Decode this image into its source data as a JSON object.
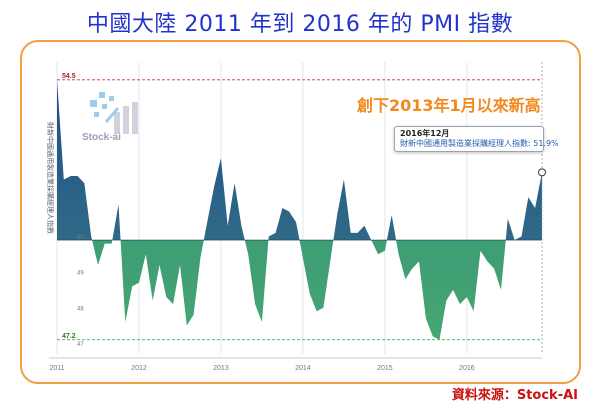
{
  "title": "中國大陸 2011 年到 2016 年的 PMI 指數",
  "annotation": "創下2013年1月以來新高",
  "tooltip": {
    "date": "2016年12月",
    "text": "財新中國通用製造業採購經理人指數: 51.9%"
  },
  "watermark": "Stock-ai",
  "source": "資料來源：Stock-AI",
  "colors": {
    "title": "#2233cc",
    "annotation": "#f08a1c",
    "source": "#cc1111",
    "above_fill": "#2d5d8a",
    "below_fill": "#3a9a78",
    "max_line": "#cc3333",
    "min_line": "#2e9a3a",
    "frame": "#f0a040"
  },
  "chart_data": {
    "type": "area",
    "ylabel": "財新中國通用製造業採購經理人指數",
    "x_ticks": [
      "2011",
      "2012",
      "2013",
      "2014",
      "2015",
      "2016"
    ],
    "ylim": [
      46.8,
      55
    ],
    "y_ticks": [
      47,
      48,
      49,
      50
    ],
    "baseline": 50,
    "max_label": "54.5",
    "min_label": "47.2",
    "grid": true,
    "x": [
      2011.0,
      2011.083,
      2011.167,
      2011.25,
      2011.333,
      2011.417,
      2011.5,
      2011.583,
      2011.667,
      2011.75,
      2011.833,
      2011.917,
      2012.0,
      2012.083,
      2012.167,
      2012.25,
      2012.333,
      2012.417,
      2012.5,
      2012.583,
      2012.667,
      2012.75,
      2012.833,
      2012.917,
      2013.0,
      2013.083,
      2013.167,
      2013.25,
      2013.333,
      2013.417,
      2013.5,
      2013.583,
      2013.667,
      2013.75,
      2013.833,
      2013.917,
      2014.0,
      2014.083,
      2014.167,
      2014.25,
      2014.333,
      2014.417,
      2014.5,
      2014.583,
      2014.667,
      2014.75,
      2014.833,
      2014.917,
      2015.0,
      2015.083,
      2015.167,
      2015.25,
      2015.333,
      2015.417,
      2015.5,
      2015.583,
      2015.667,
      2015.75,
      2015.833,
      2015.917,
      2016.0,
      2016.083,
      2016.167,
      2016.25,
      2016.333,
      2016.417,
      2016.5,
      2016.583,
      2016.667,
      2016.75,
      2016.833,
      2016.917
    ],
    "values": [
      54.5,
      51.7,
      51.8,
      51.8,
      51.6,
      50.1,
      49.3,
      49.9,
      49.9,
      51.0,
      47.7,
      48.7,
      48.8,
      49.6,
      48.3,
      49.3,
      48.4,
      48.2,
      49.3,
      47.6,
      47.9,
      49.5,
      50.5,
      51.5,
      52.3,
      50.4,
      51.6,
      50.4,
      49.6,
      48.2,
      47.7,
      50.1,
      50.2,
      50.9,
      50.8,
      50.5,
      49.5,
      48.5,
      48.0,
      48.1,
      49.4,
      50.7,
      51.7,
      50.2,
      50.2,
      50.4,
      50.0,
      49.6,
      49.7,
      50.7,
      49.6,
      48.9,
      49.2,
      49.4,
      47.8,
      47.3,
      47.2,
      48.3,
      48.6,
      48.2,
      48.4,
      48.0,
      49.7,
      49.4,
      49.2,
      48.6,
      50.6,
      50.0,
      50.1,
      51.2,
      50.9,
      51.9
    ]
  }
}
